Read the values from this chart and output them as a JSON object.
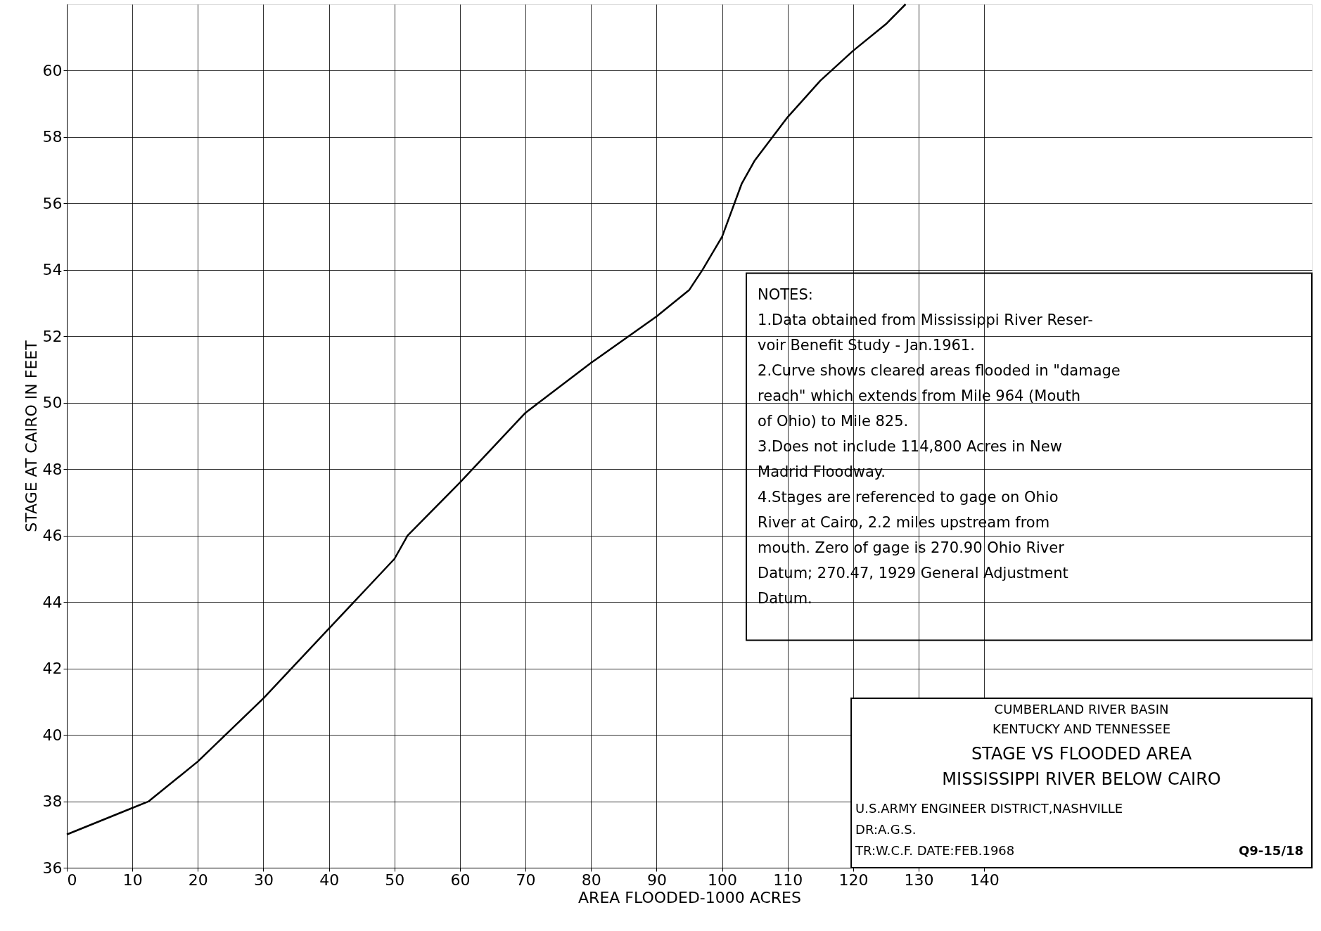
{
  "chart_data": {
    "type": "line",
    "title": "STAGE VS FLOODED AREA\nMISSISSIPPI RIVER BELOW CAIRO",
    "subtitle": "CUMBERLAND RIVER BASIN\nKENTUCKY AND TENNESSEE",
    "xlabel": "AREA FLOODED-1000 ACRES",
    "ylabel": "STAGE AT CAIRO IN FEET",
    "x": [
      0,
      10,
      12.5,
      20,
      30,
      40,
      50,
      52,
      60,
      70,
      72,
      80,
      90,
      95,
      97,
      100,
      103,
      105,
      110,
      115,
      120,
      125,
      128
    ],
    "series": [
      {
        "color": "#000000",
        "values": [
          37.0,
          37.8,
          38.0,
          39.2,
          41.1,
          43.2,
          45.3,
          46.0,
          47.6,
          49.7,
          50.0,
          51.2,
          52.6,
          53.4,
          54.0,
          55.0,
          56.6,
          57.3,
          58.6,
          59.7,
          60.6,
          61.4,
          62.0
        ]
      }
    ],
    "xlim": [
      0,
      190
    ],
    "xticks": [
      0,
      10,
      20,
      30,
      40,
      50,
      60,
      70,
      80,
      90,
      100,
      110,
      120,
      130,
      140
    ],
    "ylim": [
      36,
      62
    ],
    "yticks": [
      36,
      38,
      40,
      42,
      44,
      46,
      48,
      50,
      52,
      54,
      56,
      58,
      60
    ],
    "grid": true,
    "marker": "none",
    "line_style": "solid",
    "annotations": [
      "NOTES:\n 1.Data obtained from Mississippi River Reser-\n   voir Benefit Study - Jan.1961.\n 2.Curve shows cleared areas flooded in \"damage\n   reach\" which extends from Mile 964 (Mouth\n   of Ohio) to Mile 825.\n 3.Does not include 114,800 Acres in New\n   Madrid Floodway.\n 4.Stages are referenced to gage on Ohio\n   River at Cairo, 2.2 miles upstream from\n   mouth. Zero of gage is 270.90 Ohio River\n   Datum; 270.47, 1929 General Adjustment\n   Datum.",
      "U.S.ARMY ENGINEER DISTRICT,NASHVILLE\nDR:A.G.S.\nTR:W.C.F.  DATE:FEB.1968",
      "Q9-15/18"
    ]
  }
}
